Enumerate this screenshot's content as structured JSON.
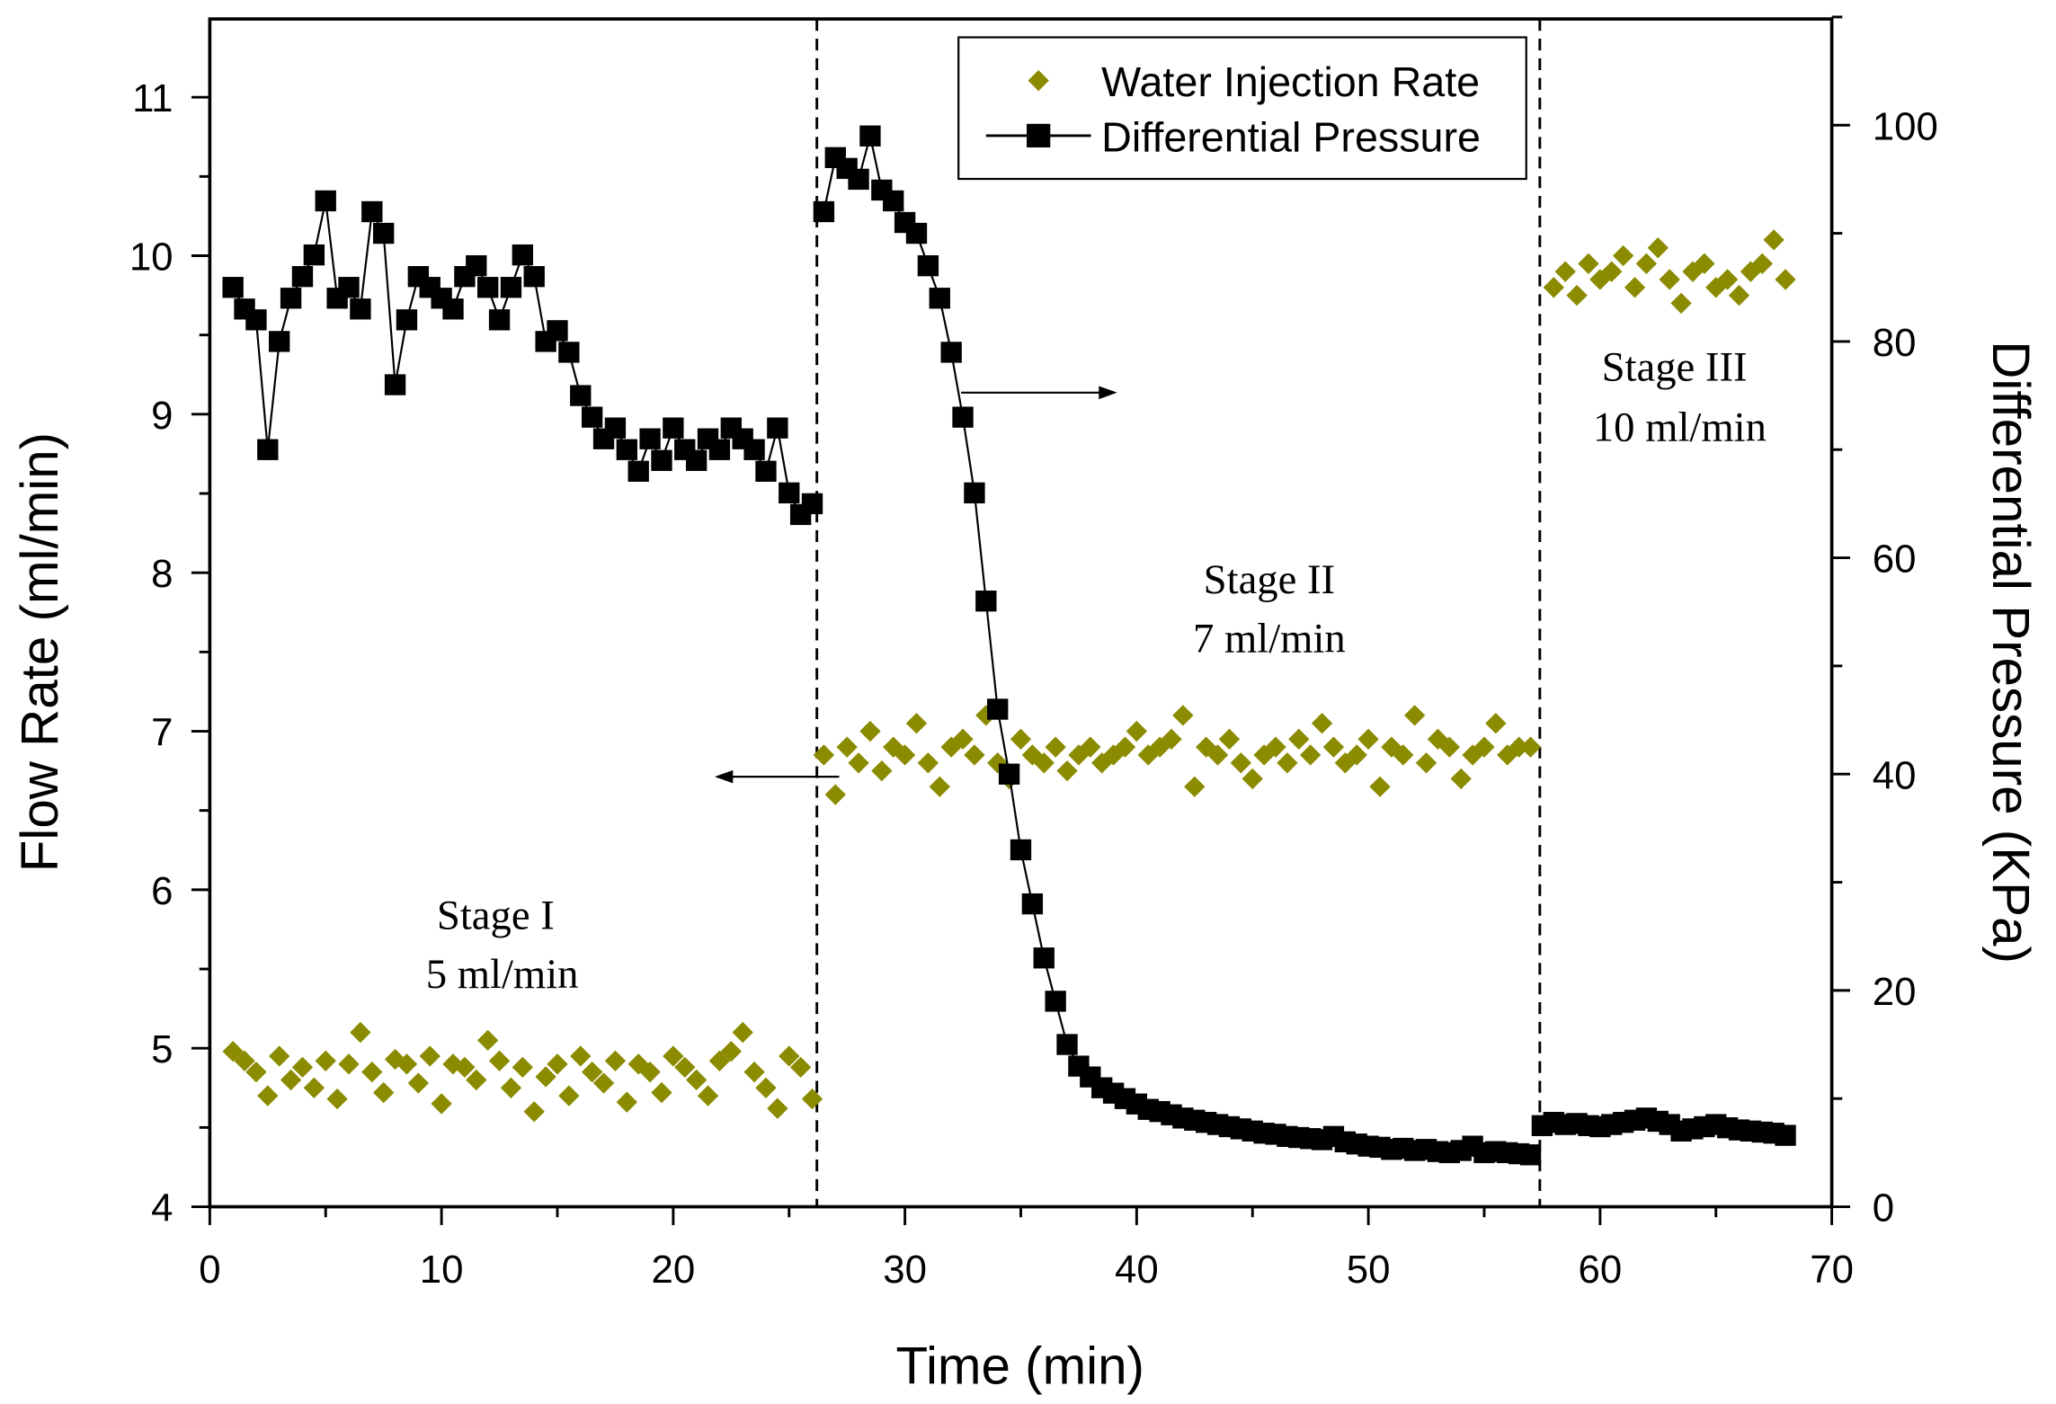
{
  "chart_data": {
    "type": "scatter",
    "xlabel": "Time (min)",
    "ylabel_left": "Flow Rate (ml/min)",
    "ylabel_right": "Differential Pressure (KPa)",
    "xlim": [
      0,
      70
    ],
    "ylim_left": [
      4,
      11.2
    ],
    "ylim_right": [
      0,
      110
    ],
    "x_ticks": [
      0,
      10,
      20,
      30,
      40,
      50,
      60,
      70
    ],
    "y_left_ticks": [
      4,
      5,
      6,
      7,
      8,
      9,
      10,
      11
    ],
    "y_right_ticks": [
      0,
      20,
      40,
      60,
      80,
      100
    ],
    "grid": false,
    "legend_position": "top-center",
    "legend": [
      "Water Injection Rate",
      "Differential Pressure"
    ],
    "stage_boundaries": [
      26.2,
      57.4
    ],
    "annotations": [
      {
        "line1": "Stage I",
        "line2": "5 ml/min",
        "x": 12.5,
        "y_left": 6.1
      },
      {
        "line1": "Stage II",
        "line2": "7 ml/min",
        "x": 45.5,
        "y_left": 8.0
      },
      {
        "line1": "Stage III",
        "line2": "10 ml/min",
        "x": 63.5,
        "y_left": 9.3
      }
    ],
    "colors": {
      "water": "#8B8B00",
      "pressure": "#000000"
    },
    "series": [
      {
        "name": "Water Injection Rate",
        "axis": "left",
        "marker": "diamond",
        "segments": [
          {
            "t0": 1,
            "dt": 0.5,
            "values": [
              4.98,
              4.92,
              4.85,
              4.7,
              4.95,
              4.8,
              4.88,
              4.75,
              4.92,
              4.68,
              4.9,
              5.1,
              4.85,
              4.72,
              4.93,
              4.9,
              4.78,
              4.95,
              4.65,
              4.9,
              4.88,
              4.8,
              5.05,
              4.92,
              4.75,
              4.88,
              4.6,
              4.82,
              4.9,
              4.7,
              4.95,
              4.85,
              4.78,
              4.92,
              4.66,
              4.9,
              4.85,
              4.72,
              4.95,
              4.88,
              4.8,
              4.7,
              4.92,
              4.98,
              5.1,
              4.85,
              4.75,
              4.62,
              4.95,
              4.88,
              4.68
            ]
          },
          {
            "t0": 26.5,
            "dt": 0.5,
            "values": [
              6.85,
              6.6,
              6.9,
              6.8,
              7.0,
              6.75,
              6.9,
              6.85,
              7.05,
              6.8,
              6.65,
              6.9,
              6.95,
              6.85,
              7.1,
              6.8,
              6.7,
              6.95,
              6.85,
              6.8,
              6.9,
              6.75,
              6.85,
              6.9,
              6.8,
              6.85,
              6.9,
              7.0,
              6.85,
              6.9,
              6.95,
              7.1,
              6.65,
              6.9,
              6.85,
              6.95,
              6.8,
              6.7,
              6.85,
              6.9,
              6.8,
              6.95,
              6.85,
              7.05,
              6.9,
              6.8,
              6.85,
              6.95,
              6.65,
              6.9,
              6.85,
              7.1,
              6.8,
              6.95,
              6.9,
              6.7,
              6.85,
              6.9,
              7.05,
              6.85,
              6.9,
              6.9
            ]
          },
          {
            "t0": 58,
            "dt": 0.5,
            "values": [
              9.8,
              9.9,
              9.75,
              9.95,
              9.85,
              9.9,
              10.0,
              9.8,
              9.95,
              10.05,
              9.85,
              9.7,
              9.9,
              9.95,
              9.8,
              9.85,
              9.75,
              9.9,
              9.95,
              10.1,
              9.85
            ]
          }
        ]
      },
      {
        "name": "Differential Pressure",
        "axis": "right",
        "marker": "square",
        "segments": [
          {
            "t0": 1,
            "dt": 0.5,
            "values": [
              85,
              83,
              82,
              70,
              80,
              84,
              86,
              88,
              93,
              84,
              85,
              83,
              92,
              90,
              76,
              82,
              86,
              85,
              84,
              83,
              86,
              87,
              85,
              82,
              85,
              88,
              86,
              80,
              81,
              79,
              75,
              73,
              71,
              72,
              70,
              68,
              71,
              69,
              72,
              70,
              69,
              71,
              70,
              72,
              71,
              70,
              68,
              72,
              66,
              64,
              65
            ]
          },
          {
            "t0": 26.5,
            "dt": 0.5,
            "values": [
              92,
              97,
              96,
              95,
              99,
              94,
              93,
              91,
              90,
              87,
              84,
              79,
              73,
              66,
              56,
              46,
              40,
              33,
              28,
              23,
              19,
              15,
              13,
              12,
              11,
              10.5,
              10,
              9.5,
              9,
              8.8,
              8.5,
              8.2,
              8,
              7.8,
              7.6,
              7.4,
              7.2,
              7,
              6.8,
              6.7,
              6.5,
              6.4,
              6.3,
              6.2,
              6.5,
              6,
              5.8,
              5.6,
              5.5,
              5.3,
              5.4,
              5.2,
              5.3,
              5.1,
              5,
              5.2,
              5.6,
              5,
              5.1,
              5,
              4.9,
              4.8
            ]
          },
          {
            "t0": 57.5,
            "dt": 0.5,
            "values": [
              7.5,
              7.8,
              7.6,
              7.7,
              7.5,
              7.4,
              7.6,
              7.8,
              8,
              8.2,
              7.9,
              7.6,
              7,
              7.2,
              7.4,
              7.6,
              7.3,
              7.1,
              7,
              6.9,
              6.8,
              6.6
            ]
          }
        ]
      }
    ]
  }
}
